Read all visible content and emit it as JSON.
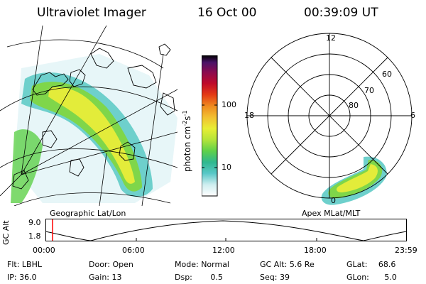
{
  "header": {
    "instrument": "Ultraviolet Imager",
    "date": "16 Oct 00",
    "time": "00:39:09 UT"
  },
  "colorbar": {
    "unit_prefix": "photon cm",
    "unit_exp1": "-2",
    "unit_mid": "s",
    "unit_exp2": "-1",
    "ticks": [
      "100",
      "10"
    ],
    "colors": [
      "#ffffff",
      "#cfeef0",
      "#59c8c8",
      "#2fb88f",
      "#5fd14a",
      "#b4e43a",
      "#e8ee35",
      "#f2c031",
      "#ef8a1f",
      "#e43a14",
      "#c00a2a",
      "#8b0a4f",
      "#4a1368",
      "#000000"
    ]
  },
  "geo_panel": {
    "label": "Geographic Lat/Lon"
  },
  "polar_panel": {
    "label": "Apex MLat/MLT",
    "mlt_labels": {
      "top": "12",
      "left": "18",
      "right": "6",
      "bottom": "0"
    },
    "lat_labels": [
      "60",
      "70",
      "80"
    ]
  },
  "altitude_plot": {
    "ylabel": "GC Alt",
    "yticks": [
      "9.0",
      "1.8"
    ],
    "xticks": [
      "00:00",
      "06:00",
      "12:00",
      "18:00",
      "23:59"
    ],
    "marker_color": "#ff0000"
  },
  "footer": {
    "rows": [
      [
        {
          "k": "Flt:",
          "v": "LBHL"
        },
        {
          "k": "Door:",
          "v": "Open"
        },
        {
          "k": "Mode:",
          "v": "Normal"
        },
        {
          "k": "GC Alt:",
          "v": "5.6 Re"
        },
        {
          "k": "GLat:",
          "v": "68.6"
        }
      ],
      [
        {
          "k": "IP:",
          "v": "36.0"
        },
        {
          "k": "Gain:",
          "v": "13"
        },
        {
          "k": "Dsp:",
          "v": "0.5"
        },
        {
          "k": "Seq:",
          "v": "39"
        },
        {
          "k": "GLon:",
          "v": "5.0"
        }
      ]
    ]
  }
}
